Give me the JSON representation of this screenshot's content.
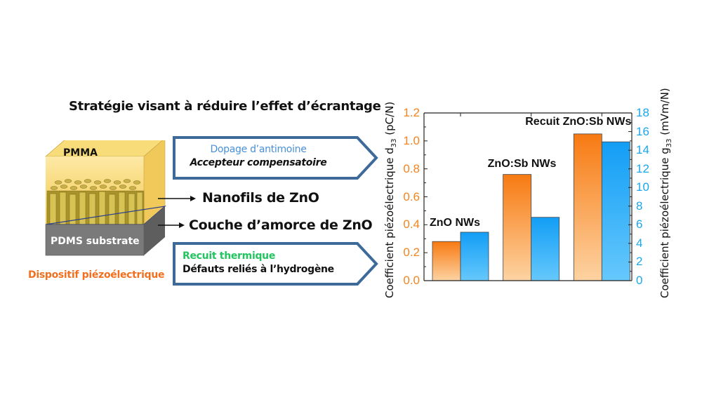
{
  "title": "Stratégie visant à réduire l’effet d’écrantage",
  "device": {
    "top_layer": "PMMA",
    "bottom_layer": "PDMS substrate",
    "caption": "Dispositif piézoélectrique",
    "nanowire_label": "Nanofils de ZnO",
    "seed_label": "Couche d’amorce de ZnO"
  },
  "strategies": [
    {
      "heading": "Dopage d’antimoine",
      "heading_color": "#4a90d9",
      "detail": "Accepteur compensatoire"
    },
    {
      "heading": "Recuit thermique",
      "heading_color": "#22c55e",
      "detail": "Défauts reliés à l’hydrogène"
    }
  ],
  "colors": {
    "orange": "#f5841f",
    "blue": "#1aa7ec",
    "arrow_border": "#3e6a9a",
    "device_caption": "#f07020"
  },
  "chart_data": {
    "type": "bar",
    "categories": [
      "ZnO NWs",
      "ZnO:Sb NWs",
      "Recuit ZnO:Sb NWs"
    ],
    "series": [
      {
        "name": "d33 (pC/N)",
        "axis": "left",
        "color": "#f5841f",
        "values": [
          0.28,
          0.76,
          1.05
        ]
      },
      {
        "name": "g33 (mVm/N)",
        "axis": "right",
        "color": "#1aa7ec",
        "values": [
          5.2,
          6.8,
          14.9
        ]
      }
    ],
    "ylabel_left": "Coefficient piézoélectrique d33 (pC/N)",
    "ylabel_right": "Coefficient piézoélectrique g33 (mVm/N)",
    "ylim_left": [
      0,
      1.2
    ],
    "ylim_right": [
      0,
      18
    ],
    "yticks_left": [
      "0.0",
      "0.2",
      "0.4",
      "0.6",
      "0.8",
      "1.0",
      "1.2"
    ],
    "yticks_right": [
      "0",
      "2",
      "4",
      "6",
      "8",
      "10",
      "12",
      "14",
      "16",
      "18"
    ],
    "grid": false,
    "legend": "none"
  }
}
